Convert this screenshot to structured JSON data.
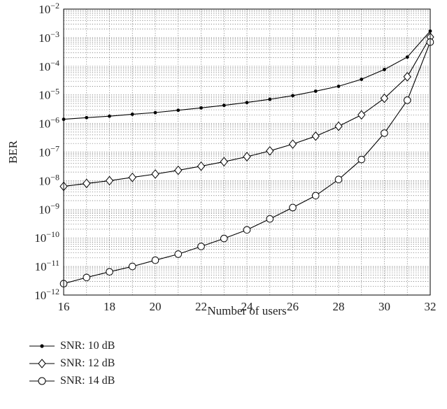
{
  "chart_data": {
    "type": "line",
    "title": "",
    "xlabel": "Number of users",
    "ylabel": "BER",
    "xlim": [
      16,
      32
    ],
    "ylim": [
      1e-12,
      0.01
    ],
    "yscale": "log",
    "grid": true,
    "x": [
      16,
      17,
      18,
      19,
      20,
      21,
      22,
      23,
      24,
      25,
      26,
      27,
      28,
      29,
      30,
      31,
      32
    ],
    "x_ticks": [
      "16",
      "18",
      "20",
      "22",
      "24",
      "26",
      "28",
      "30",
      "32"
    ],
    "y_ticks": [
      {
        "base": "10",
        "exp": "−2"
      },
      {
        "base": "10",
        "exp": "−3"
      },
      {
        "base": "10",
        "exp": "−4"
      },
      {
        "base": "10",
        "exp": "−5"
      },
      {
        "base": "10",
        "exp": "−6"
      },
      {
        "base": "10",
        "exp": "−7"
      },
      {
        "base": "10",
        "exp": "−8"
      },
      {
        "base": "10",
        "exp": "−9"
      },
      {
        "base": "10",
        "exp": "−10"
      },
      {
        "base": "10",
        "exp": "−11"
      },
      {
        "base": "10",
        "exp": "−12"
      }
    ],
    "legend_position": "below",
    "series": [
      {
        "name": "SNR: 10 dB",
        "marker": "dot",
        "values": [
          1.4e-06,
          1.6e-06,
          1.8e-06,
          2.1e-06,
          2.4e-06,
          2.9e-06,
          3.5e-06,
          4.3e-06,
          5.4e-06,
          7e-06,
          9.4e-06,
          1.35e-05,
          2e-05,
          3.5e-05,
          7.7e-05,
          0.00021,
          0.0017
        ]
      },
      {
        "name": "SNR: 12 dB",
        "marker": "diamond",
        "values": [
          6.3e-09,
          8e-09,
          1e-08,
          1.3e-08,
          1.7e-08,
          2.3e-08,
          3.2e-08,
          4.6e-08,
          6.9e-08,
          1.1e-07,
          1.9e-07,
          3.6e-07,
          8e-07,
          2e-06,
          7.6e-06,
          4.3e-05,
          0.00105
        ]
      },
      {
        "name": "SNR: 14 dB",
        "marker": "circle",
        "values": [
          2.5e-12,
          4.1e-12,
          6.5e-12,
          1e-11,
          1.65e-11,
          2.7e-11,
          5e-11,
          9.5e-11,
          1.9e-10,
          4.6e-10,
          1.15e-09,
          3e-09,
          1.1e-08,
          5.5e-08,
          4.6e-07,
          6.5e-06,
          0.0007
        ]
      }
    ]
  }
}
